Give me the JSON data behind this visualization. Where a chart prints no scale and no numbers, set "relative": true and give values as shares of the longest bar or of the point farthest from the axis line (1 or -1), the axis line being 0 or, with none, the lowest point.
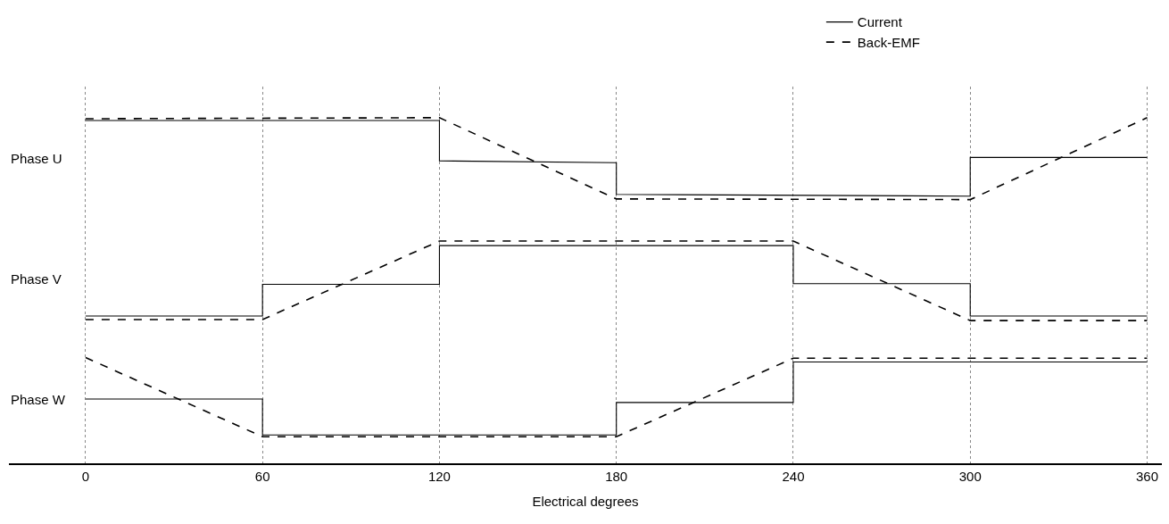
{
  "chart_data": {
    "type": "line",
    "relative": true,
    "xlabel": "Electrical degrees",
    "xlim": [
      -26,
      365
    ],
    "xticks": [
      0,
      60,
      120,
      180,
      240,
      300,
      360
    ],
    "grid": "x",
    "legend": "top right",
    "marker": "none",
    "series": [
      {
        "name": "Current",
        "color": "#000000",
        "line_style": "solid",
        "x": [
          0,
          120,
          120,
          180,
          180,
          300,
          300,
          360
        ],
        "values": [
          0.992,
          0.992,
          0.875,
          0.87,
          0.778,
          0.773,
          0.885,
          0.885
        ]
      },
      {
        "name": "Back-EMF",
        "color": "#000000",
        "line_style": "dashed",
        "x": [
          0,
          120,
          180,
          300,
          360
        ],
        "values": [
          0.997,
          1.0,
          0.765,
          0.763,
          1.0
        ]
      },
      {
        "color": "#000000",
        "line_style": "solid",
        "x": [
          0,
          60,
          60,
          120,
          120,
          240,
          240,
          300,
          300,
          360
        ],
        "values": [
          0.426,
          0.426,
          0.518,
          0.518,
          0.63,
          0.63,
          0.52,
          0.52,
          0.426,
          0.426
        ]
      },
      {
        "color": "#000000",
        "line_style": "dashed",
        "x": [
          0,
          60,
          120,
          240,
          300,
          360
        ],
        "values": [
          0.416,
          0.416,
          0.643,
          0.643,
          0.413,
          0.413
        ]
      },
      {
        "color": "#000000",
        "line_style": "solid",
        "x": [
          0,
          60,
          60,
          180,
          180,
          240,
          240,
          360
        ],
        "values": [
          0.186,
          0.186,
          0.082,
          0.082,
          0.176,
          0.176,
          0.293,
          0.293
        ]
      },
      {
        "color": "#000000",
        "line_style": "dashed",
        "x": [
          0,
          60,
          180,
          240,
          360
        ],
        "values": [
          0.306,
          0.077,
          0.077,
          0.304,
          0.304
        ]
      }
    ],
    "annotations": [
      "Phase U",
      "Phase V",
      "Phase W"
    ]
  }
}
